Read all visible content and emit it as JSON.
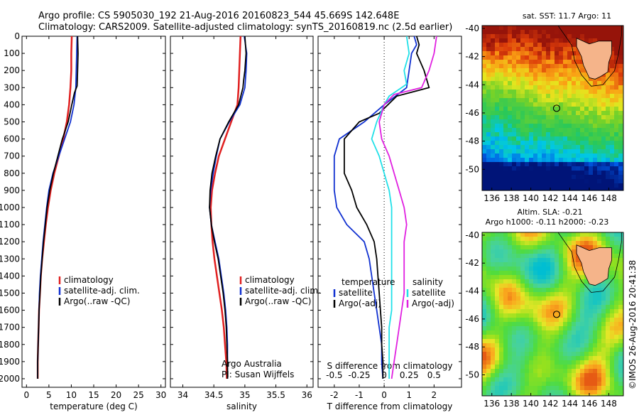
{
  "header": {
    "title_line1": "Argo profile: CS 5905030_192 21-Aug-2016 20160823_544 45.669S 142.648E",
    "title_line2": "Climatology: CARS2009. Satellite-adjusted climatology: synTS_20160819.nc (2.5d earlier)"
  },
  "colors": {
    "climatology": "#e02020",
    "satellite": "#1030d0",
    "argo": "#000000",
    "cyan": "#20e0e8",
    "magenta": "#e020e0"
  },
  "depth_ticks": [
    0,
    100,
    200,
    300,
    400,
    500,
    600,
    700,
    800,
    900,
    1000,
    1100,
    1200,
    1300,
    1400,
    1500,
    1600,
    1700,
    1800,
    1900,
    2000
  ],
  "chart_data": [
    {
      "type": "line",
      "name": "temperature",
      "xlabel": "temperature (deg C)",
      "xlim": [
        -1,
        31
      ],
      "ylim": [
        2050,
        0
      ],
      "xticks": [
        0,
        5,
        10,
        15,
        20,
        25,
        30
      ],
      "legend": [
        "climatology",
        "satellite-adj. clim.",
        "Argo(..raw -QC)"
      ],
      "series": [
        {
          "name": "climatology",
          "color": "#e02020",
          "points": [
            [
              10.1,
              0
            ],
            [
              10.0,
              100
            ],
            [
              10.0,
              200
            ],
            [
              9.8,
              300
            ],
            [
              9.5,
              400
            ],
            [
              9.0,
              500
            ],
            [
              8.2,
              600
            ],
            [
              7.2,
              700
            ],
            [
              6.2,
              800
            ],
            [
              5.4,
              900
            ],
            [
              4.8,
              1000
            ],
            [
              4.3,
              1100
            ],
            [
              3.9,
              1200
            ],
            [
              3.5,
              1300
            ],
            [
              3.2,
              1400
            ],
            [
              3.0,
              1500
            ],
            [
              2.8,
              1600
            ],
            [
              2.7,
              1700
            ],
            [
              2.6,
              1800
            ],
            [
              2.5,
              1900
            ],
            [
              2.5,
              2000
            ]
          ]
        },
        {
          "name": "satellite-adj. clim.",
          "color": "#1030d0",
          "points": [
            [
              11.3,
              0
            ],
            [
              11.2,
              100
            ],
            [
              11.1,
              200
            ],
            [
              11.0,
              300
            ],
            [
              10.6,
              400
            ],
            [
              9.8,
              500
            ],
            [
              8.5,
              600
            ],
            [
              7.2,
              700
            ],
            [
              5.9,
              800
            ],
            [
              5.0,
              900
            ],
            [
              4.5,
              1000
            ],
            [
              4.1,
              1100
            ],
            [
              3.7,
              1200
            ],
            [
              3.4,
              1300
            ],
            [
              3.1,
              1400
            ],
            [
              2.9,
              1500
            ],
            [
              2.8,
              1600
            ],
            [
              2.7,
              1700
            ],
            [
              2.6,
              1800
            ],
            [
              2.5,
              1900
            ],
            [
              2.5,
              2000
            ]
          ]
        },
        {
          "name": "Argo(..raw -QC)",
          "color": "#000000",
          "points": [
            [
              11.4,
              0
            ],
            [
              11.5,
              100
            ],
            [
              11.4,
              200
            ],
            [
              11.3,
              290
            ],
            [
              10.7,
              330
            ],
            [
              10.1,
              400
            ],
            [
              9.3,
              500
            ],
            [
              8.0,
              600
            ],
            [
              7.0,
              700
            ],
            [
              6.0,
              800
            ],
            [
              5.2,
              900
            ],
            [
              4.6,
              1000
            ],
            [
              4.2,
              1100
            ],
            [
              3.8,
              1200
            ],
            [
              3.5,
              1300
            ],
            [
              3.2,
              1400
            ],
            [
              3.0,
              1500
            ],
            [
              2.8,
              1600
            ],
            [
              2.7,
              1700
            ],
            [
              2.6,
              1800
            ],
            [
              2.5,
              1900
            ],
            [
              2.5,
              2000
            ]
          ]
        }
      ]
    },
    {
      "type": "line",
      "name": "salinity",
      "xlabel": "salinity",
      "xlim": [
        33.8,
        36.1
      ],
      "ylim": [
        2050,
        0
      ],
      "xticks": [
        34,
        34.5,
        35,
        35.5,
        36
      ],
      "legend": [
        "climatology",
        "satellite-adj. clim.",
        "Argo(..raw -QC)"
      ],
      "annotation": [
        "Argo Australia",
        "PI: Susan Wijffels"
      ],
      "series": [
        {
          "name": "climatology",
          "color": "#e02020",
          "points": [
            [
              34.93,
              0
            ],
            [
              34.92,
              100
            ],
            [
              34.91,
              200
            ],
            [
              34.9,
              300
            ],
            [
              34.88,
              400
            ],
            [
              34.78,
              500
            ],
            [
              34.68,
              600
            ],
            [
              34.58,
              700
            ],
            [
              34.52,
              800
            ],
            [
              34.47,
              900
            ],
            [
              34.45,
              1000
            ],
            [
              34.46,
              1100
            ],
            [
              34.48,
              1200
            ],
            [
              34.51,
              1300
            ],
            [
              34.55,
              1400
            ],
            [
              34.59,
              1500
            ],
            [
              34.63,
              1600
            ],
            [
              34.66,
              1700
            ],
            [
              34.68,
              1800
            ],
            [
              34.7,
              1900
            ],
            [
              34.71,
              2000
            ]
          ]
        },
        {
          "name": "satellite-adj. clim.",
          "color": "#1030d0",
          "points": [
            [
              34.99,
              0
            ],
            [
              35.03,
              100
            ],
            [
              35.02,
              200
            ],
            [
              35.0,
              300
            ],
            [
              34.92,
              400
            ],
            [
              34.75,
              500
            ],
            [
              34.6,
              600
            ],
            [
              34.54,
              700
            ],
            [
              34.49,
              800
            ],
            [
              34.45,
              900
            ],
            [
              34.43,
              1000
            ],
            [
              34.46,
              1100
            ],
            [
              34.52,
              1200
            ],
            [
              34.58,
              1300
            ],
            [
              34.62,
              1400
            ],
            [
              34.66,
              1500
            ],
            [
              34.69,
              1600
            ],
            [
              34.71,
              1700
            ],
            [
              34.72,
              1800
            ],
            [
              34.72,
              1900
            ],
            [
              34.72,
              2000
            ]
          ]
        },
        {
          "name": "Argo(..raw -QC)",
          "color": "#000000",
          "points": [
            [
              35.0,
              0
            ],
            [
              35.02,
              100
            ],
            [
              35.0,
              200
            ],
            [
              34.98,
              260
            ],
            [
              34.97,
              300
            ],
            [
              34.9,
              400
            ],
            [
              34.74,
              500
            ],
            [
              34.6,
              600
            ],
            [
              34.53,
              700
            ],
            [
              34.47,
              800
            ],
            [
              34.44,
              900
            ],
            [
              34.43,
              1000
            ],
            [
              34.46,
              1100
            ],
            [
              34.51,
              1200
            ],
            [
              34.57,
              1300
            ],
            [
              34.61,
              1400
            ],
            [
              34.65,
              1500
            ],
            [
              34.68,
              1600
            ],
            [
              34.7,
              1700
            ],
            [
              34.71,
              1800
            ],
            [
              34.72,
              1900
            ],
            [
              34.72,
              2000
            ]
          ]
        }
      ]
    },
    {
      "type": "line",
      "name": "differences",
      "xlabel_bottom": "T difference from climatology",
      "xlabel_top": "S difference from climatology",
      "xlim": [
        -2.65,
        3.1
      ],
      "ylim": [
        2050,
        0
      ],
      "xticks": [
        -2,
        -1,
        0,
        1,
        2
      ],
      "top_ticks": [
        {
          "label": "-0.5",
          "x": -2
        },
        {
          "label": "-0.25",
          "x": -1
        },
        {
          "label": "0",
          "x": 0
        },
        {
          "label": "0.25",
          "x": 1
        },
        {
          "label": "0.5",
          "x": 2
        }
      ],
      "legend_left_title": "temperature",
      "legend_right_title": "salinity",
      "legend": [
        "satellite",
        "Argo(-adj)",
        "satellite",
        "Argo(-adj)"
      ],
      "series": [
        {
          "name": "satellite",
          "color": "#1030d0",
          "points": [
            [
              1.2,
              0
            ],
            [
              1.3,
              50
            ],
            [
              1.1,
              100
            ],
            [
              1.0,
              200
            ],
            [
              0.9,
              300
            ],
            [
              0.0,
              400
            ],
            [
              -0.8,
              500
            ],
            [
              -1.8,
              600
            ],
            [
              -2.0,
              700
            ],
            [
              -2.0,
              800
            ],
            [
              -2.0,
              900
            ],
            [
              -1.9,
              1000
            ],
            [
              -1.5,
              1100
            ],
            [
              -0.8,
              1200
            ],
            [
              -0.6,
              1300
            ],
            [
              -0.5,
              1400
            ],
            [
              -0.4,
              1500
            ],
            [
              -0.3,
              1600
            ],
            [
              -0.2,
              1700
            ],
            [
              -0.1,
              1800
            ],
            [
              -0.1,
              1900
            ],
            [
              -0.05,
              2000
            ]
          ]
        },
        {
          "name": "Argo(-adj)",
          "color": "#000000",
          "points": [
            [
              1.3,
              0
            ],
            [
              1.4,
              50
            ],
            [
              1.3,
              100
            ],
            [
              1.6,
              200
            ],
            [
              1.8,
              300
            ],
            [
              0.5,
              350
            ],
            [
              -0.2,
              450
            ],
            [
              -1.0,
              500
            ],
            [
              -1.6,
              600
            ],
            [
              -1.6,
              700
            ],
            [
              -1.6,
              800
            ],
            [
              -1.3,
              900
            ],
            [
              -1.1,
              1000
            ],
            [
              -0.7,
              1100
            ],
            [
              -0.4,
              1200
            ],
            [
              -0.3,
              1300
            ],
            [
              -0.25,
              1400
            ],
            [
              -0.2,
              1500
            ],
            [
              -0.15,
              1600
            ],
            [
              -0.1,
              1700
            ],
            [
              -0.1,
              1800
            ],
            [
              -0.05,
              1900
            ],
            [
              -0.05,
              2000
            ]
          ]
        },
        {
          "name": "satellite (S)",
          "color": "#20e0e8",
          "points": [
            [
              0.9,
              0
            ],
            [
              1.0,
              100
            ],
            [
              0.8,
              200
            ],
            [
              0.9,
              280
            ],
            [
              0.2,
              350
            ],
            [
              0.0,
              400
            ],
            [
              -0.3,
              500
            ],
            [
              -0.5,
              600
            ],
            [
              -0.2,
              700
            ],
            [
              0.0,
              800
            ],
            [
              0.2,
              900
            ],
            [
              0.3,
              1000
            ],
            [
              0.3,
              1100
            ],
            [
              0.3,
              1200
            ],
            [
              0.3,
              1300
            ],
            [
              0.3,
              1400
            ],
            [
              0.3,
              1500
            ],
            [
              0.3,
              1600
            ],
            [
              0.2,
              1700
            ],
            [
              0.2,
              1800
            ],
            [
              0.2,
              1900
            ],
            [
              0.2,
              2000
            ]
          ]
        },
        {
          "name": "Argo(-adj) (S)",
          "color": "#e020e0",
          "points": [
            [
              2.1,
              0
            ],
            [
              2.0,
              100
            ],
            [
              1.8,
              200
            ],
            [
              1.5,
              300
            ],
            [
              0.4,
              340
            ],
            [
              0.0,
              400
            ],
            [
              -0.2,
              500
            ],
            [
              -0.1,
              600
            ],
            [
              0.2,
              700
            ],
            [
              0.4,
              800
            ],
            [
              0.6,
              900
            ],
            [
              0.8,
              1000
            ],
            [
              0.9,
              1100
            ],
            [
              0.8,
              1200
            ],
            [
              0.8,
              1300
            ],
            [
              0.8,
              1400
            ],
            [
              0.8,
              1500
            ],
            [
              0.7,
              1600
            ],
            [
              0.6,
              1700
            ],
            [
              0.5,
              1800
            ],
            [
              0.4,
              1900
            ],
            [
              0.3,
              2000
            ]
          ]
        }
      ]
    },
    {
      "type": "heatmap",
      "name": "sst_map",
      "title": "sat. SST: 11.7 Argo: 11",
      "xticks": [
        136,
        138,
        140,
        142,
        144,
        146,
        148
      ],
      "yticks": [
        -40,
        -42,
        -44,
        -46,
        -48,
        -50
      ],
      "xlim": [
        135,
        149.5
      ],
      "ylim": [
        -51.5,
        -39.8
      ],
      "argo_position": [
        142.648,
        -45.669
      ]
    },
    {
      "type": "heatmap",
      "name": "sla_map",
      "title_line1": "Altim. SLA: -0.21",
      "title_line2": "Argo h1000: -0.11 h2000: -0.23",
      "xticks": [
        136,
        138,
        140,
        142,
        144,
        146,
        148
      ],
      "yticks": [
        -40,
        -42,
        -44,
        -46,
        -48,
        -50
      ],
      "xlim": [
        135,
        149.5
      ],
      "ylim": [
        -51.5,
        -39.8
      ],
      "argo_position": [
        142.648,
        -45.669
      ]
    }
  ],
  "side_text": "©IMOS 26-Aug-2016 20:41:38"
}
